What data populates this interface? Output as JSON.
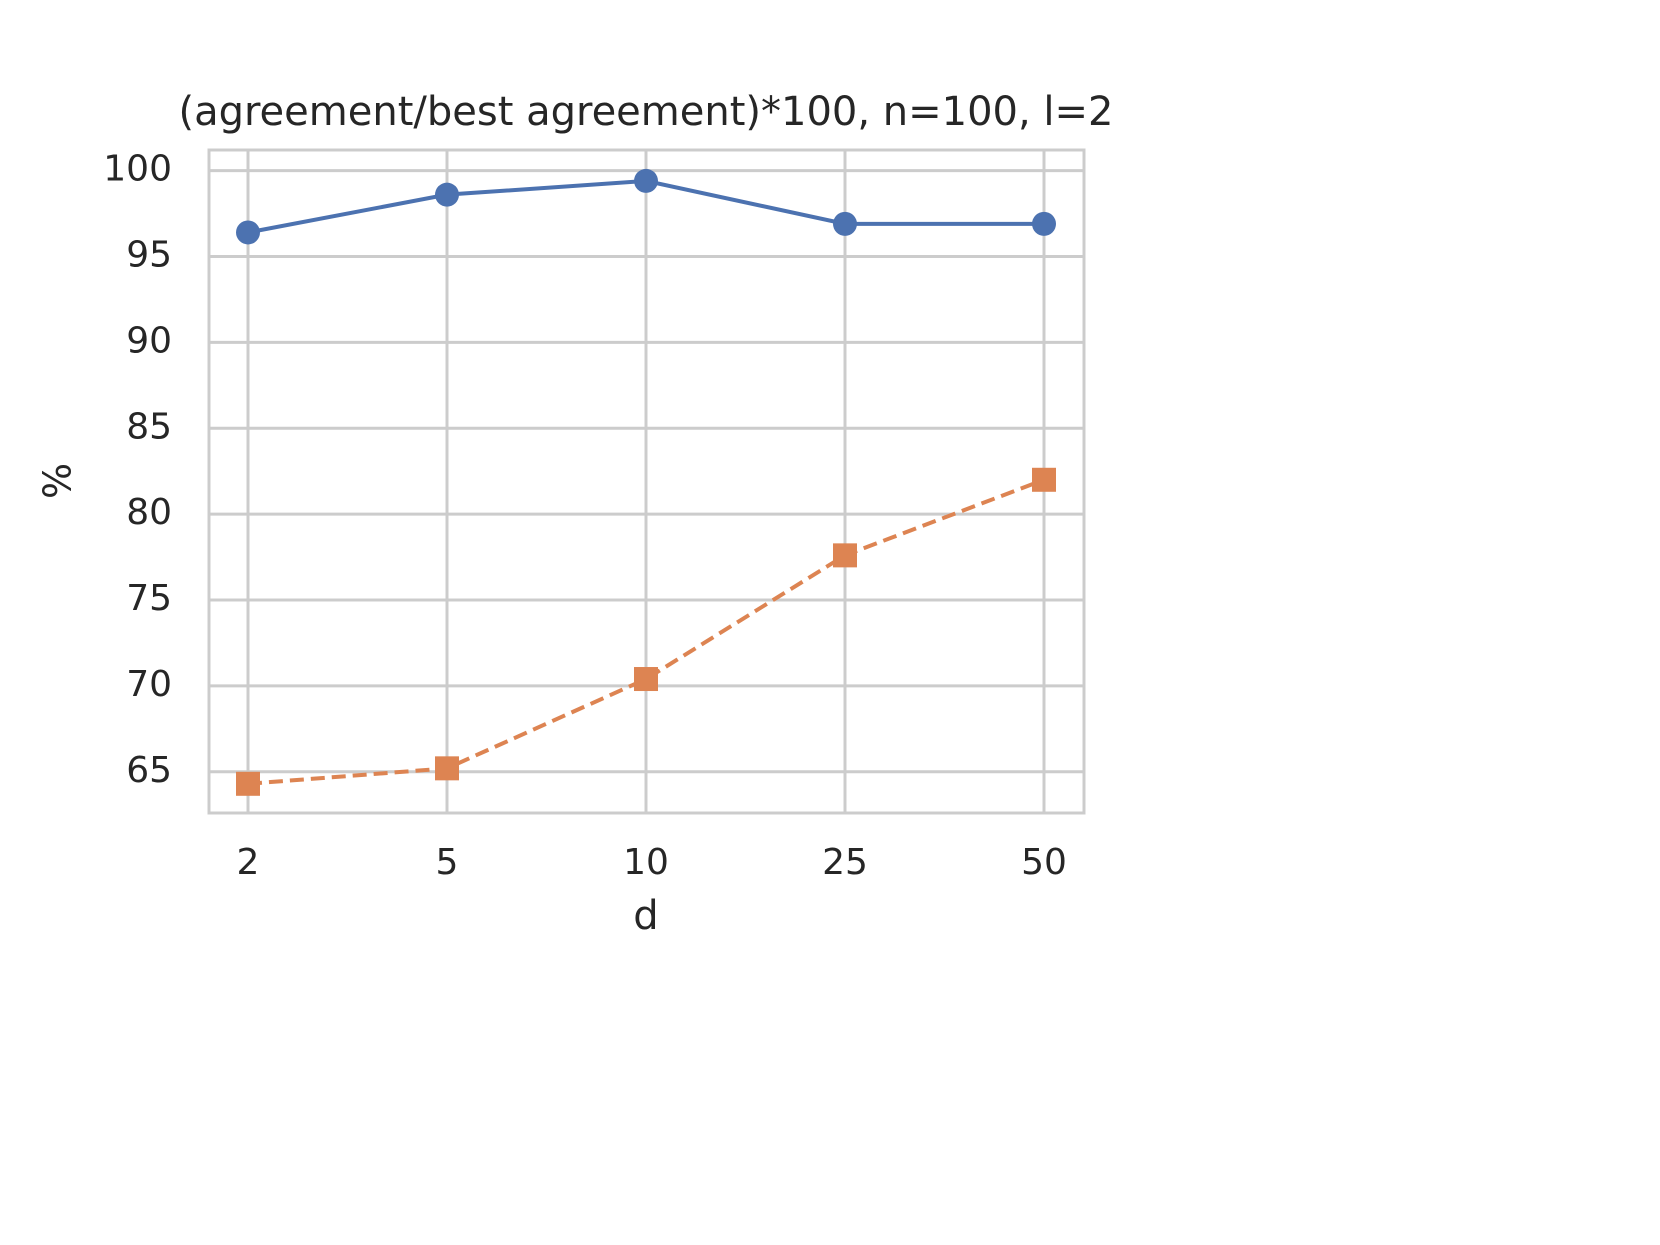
{
  "chart_data": {
    "type": "line",
    "title": "(agreement/best agreement)*100, n=100, l=2",
    "x_label": "d",
    "y_label": "%",
    "categories": [
      "2",
      "5",
      "10",
      "25",
      "50"
    ],
    "series": [
      {
        "color": "#4c72b0",
        "marker": "circle",
        "linestyle": "solid",
        "values": [
          96.4,
          98.6,
          99.4,
          96.9,
          96.9
        ]
      },
      {
        "color": "#dd8452",
        "marker": "square",
        "linestyle": "dashed",
        "values": [
          64.3,
          65.2,
          70.4,
          77.6,
          82.0
        ]
      }
    ],
    "ylim": [
      62.6,
      101.2
    ],
    "yticks": [
      65,
      70,
      75,
      80,
      85,
      90,
      95,
      100
    ],
    "grid": true
  }
}
